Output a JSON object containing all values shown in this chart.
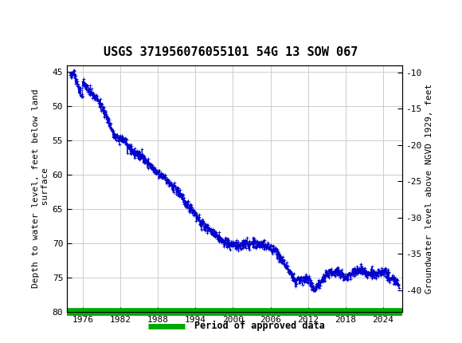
{
  "title": "USGS 371956076055101 54G 13 SOW 067",
  "ylabel_left": "Depth to water level, feet below land\n surface",
  "ylabel_right": "Groundwater level above NGVD 1929, feet",
  "ylim_left": [
    80,
    44
  ],
  "ylim_right": [
    -43,
    -9
  ],
  "yticks_left": [
    45,
    50,
    55,
    60,
    65,
    70,
    75,
    80
  ],
  "yticks_right": [
    -10,
    -15,
    -20,
    -25,
    -30,
    -35,
    -40
  ],
  "xlim": [
    1973.5,
    2027.0
  ],
  "xticks": [
    1976,
    1982,
    1988,
    1994,
    2000,
    2006,
    2012,
    2018,
    2024
  ],
  "line_color": "#0000CC",
  "approved_color": "#00AA00",
  "header_color": "#1a6b3c",
  "grid_color": "#cccccc",
  "title_fontsize": 11,
  "axis_label_fontsize": 8,
  "tick_fontsize": 8,
  "legend_text": "Period of approved data",
  "data_seed": 42
}
